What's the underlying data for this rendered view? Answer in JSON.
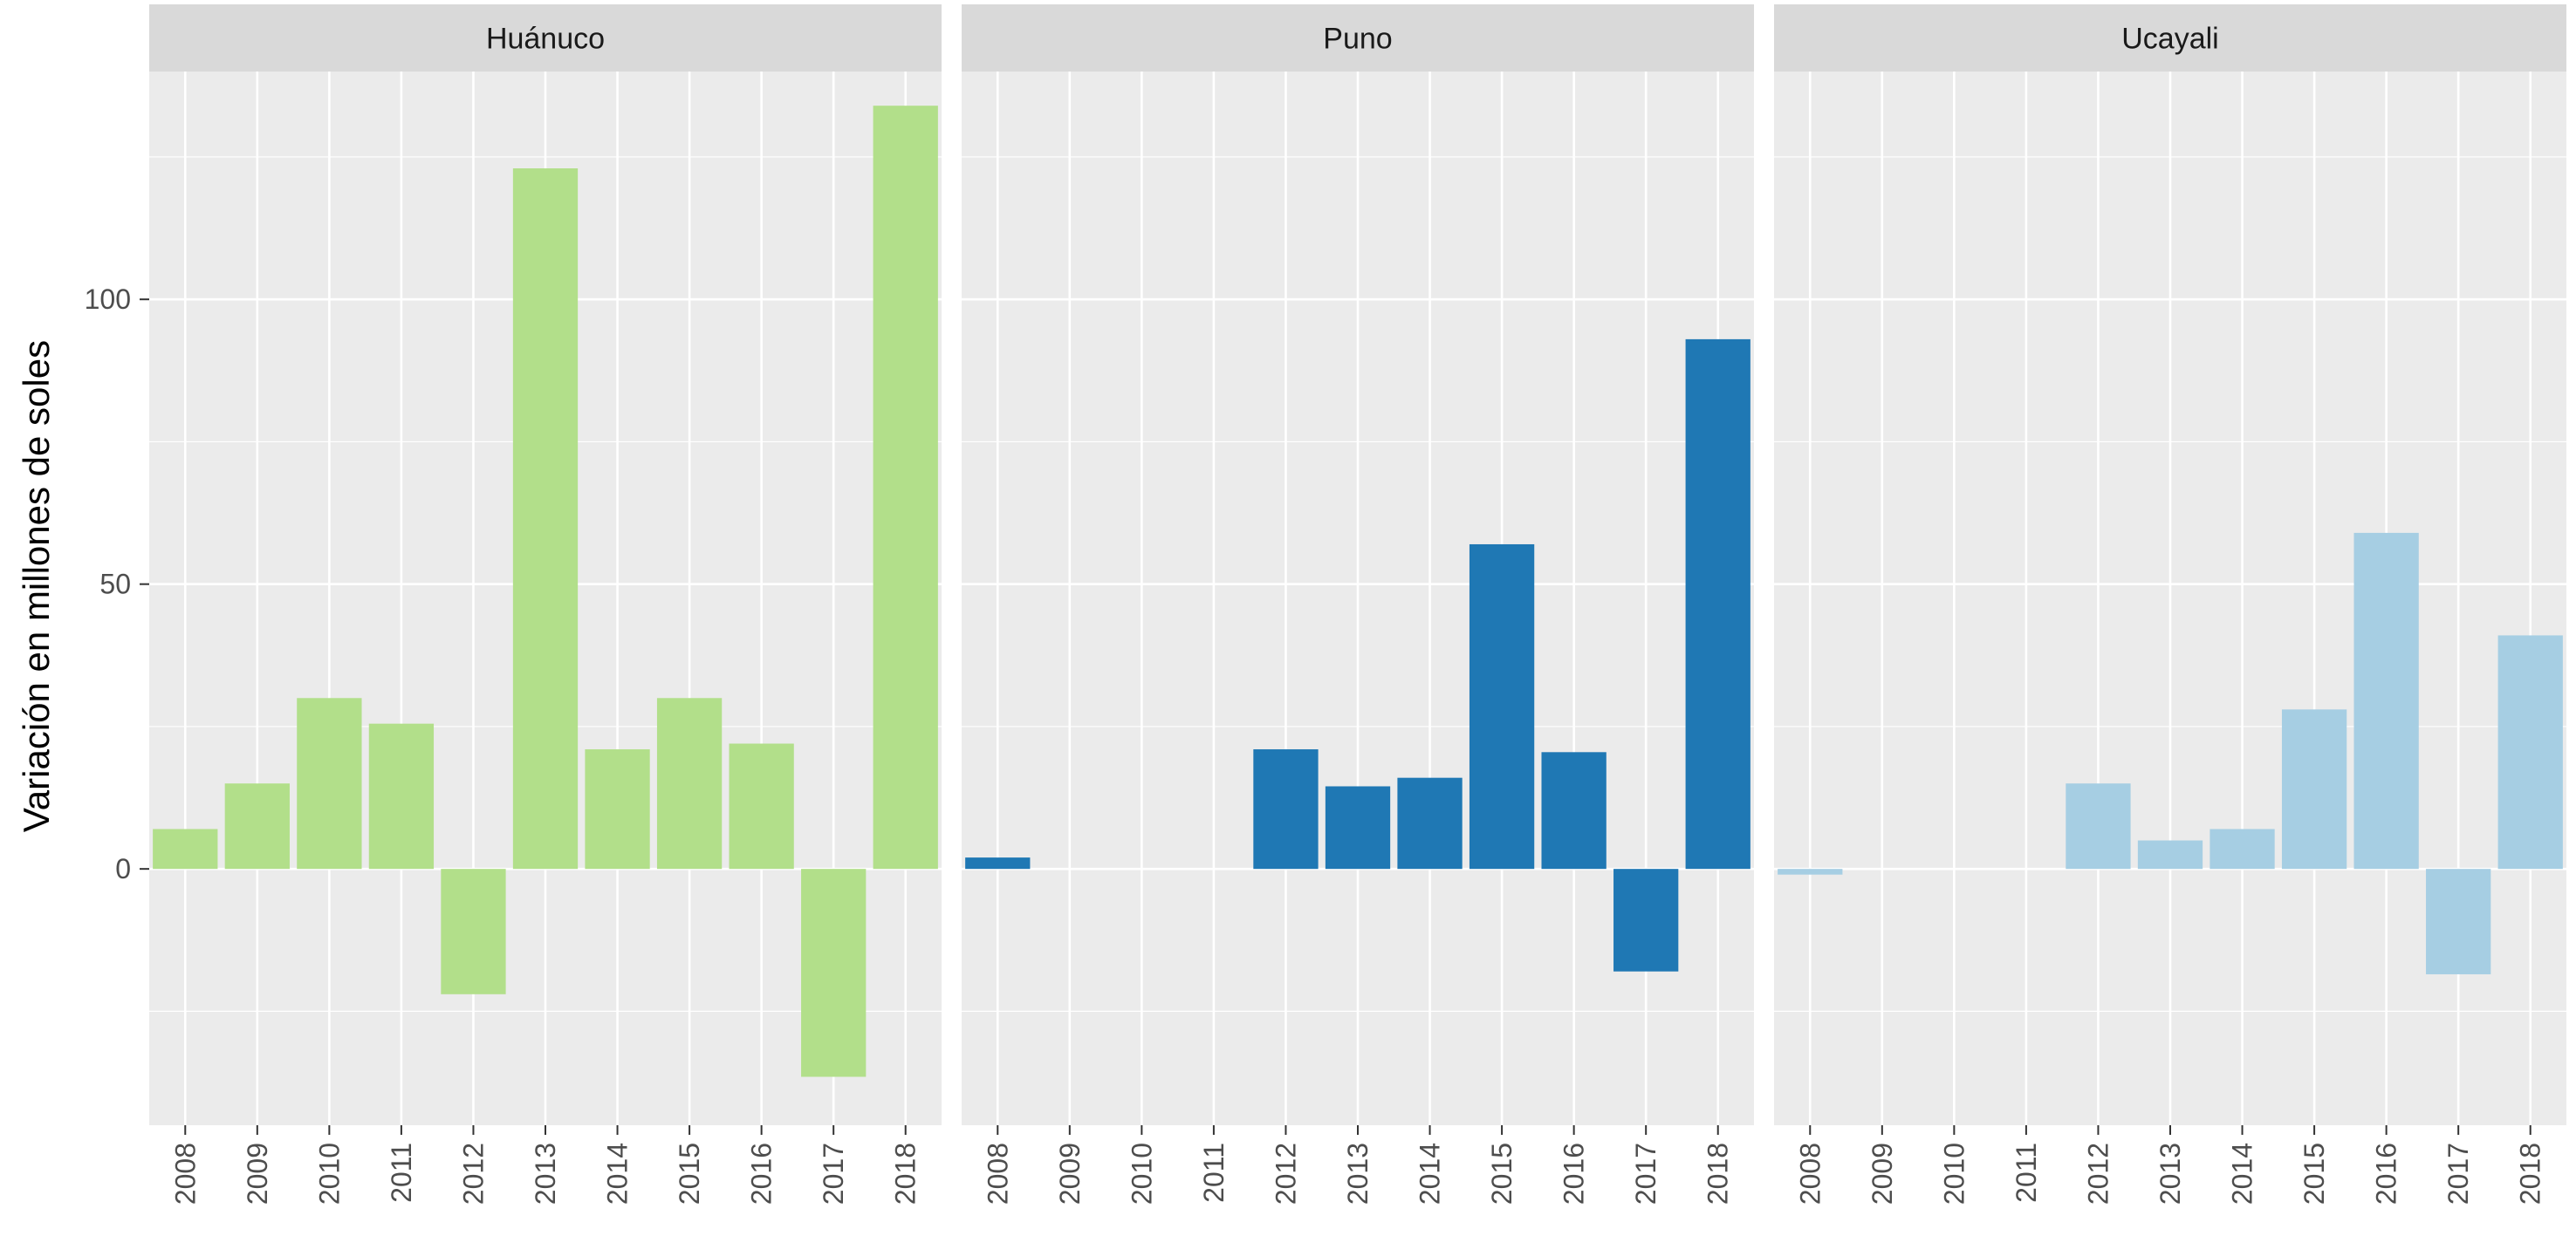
{
  "chart_data": {
    "type": "bar",
    "ylabel": "Variación en millones de soles",
    "xlabel": "",
    "ylim": [
      -45,
      140
    ],
    "yticks": [
      0,
      50,
      100
    ],
    "categories": [
      "2008",
      "2009",
      "2010",
      "2011",
      "2012",
      "2013",
      "2014",
      "2015",
      "2016",
      "2017",
      "2018"
    ],
    "grid": true,
    "panels": [
      {
        "name": "Huánuco",
        "color": "#b2df8a",
        "values": [
          7,
          15,
          30,
          25.5,
          -22,
          123,
          21,
          30,
          22,
          -36.5,
          134
        ]
      },
      {
        "name": "Puno",
        "color": "#1f78b4",
        "values": [
          2,
          0,
          0,
          0,
          21,
          14.5,
          16,
          57,
          20.5,
          -18,
          93
        ]
      },
      {
        "name": "Ucayali",
        "color": "#a6cee3",
        "values": [
          -1,
          0,
          0,
          0,
          15,
          5,
          7,
          28,
          59,
          -18.5,
          41
        ]
      }
    ]
  }
}
